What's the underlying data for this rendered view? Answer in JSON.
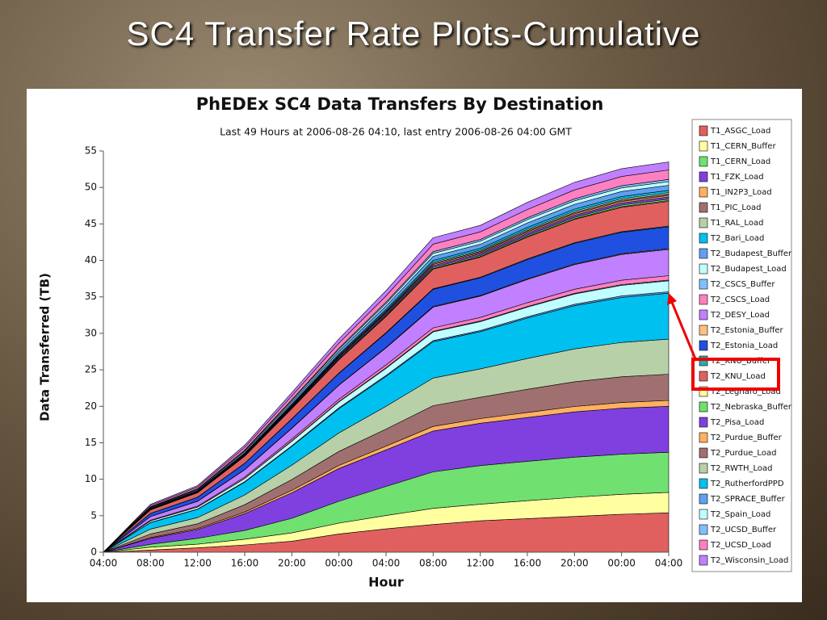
{
  "slide_title": "SC4 Transfer Rate Plots-Cumulative",
  "chart_data": {
    "type": "stacked_area",
    "title": "PhEDEx SC4 Data Transfers By Destination",
    "subtitle": "Last 49 Hours at 2006-08-26 04:10, last entry 2006-08-26 04:00 GMT",
    "x_label": "Hour",
    "y_label": "Data Transferred (TB)",
    "categories": [
      "04:00",
      "08:00",
      "12:00",
      "16:00",
      "20:00",
      "00:00",
      "04:00",
      "08:00",
      "12:00",
      "16:00",
      "20:00",
      "00:00",
      "04:00"
    ],
    "ylim": [
      0,
      55
    ],
    "yticks": [
      0,
      5,
      10,
      15,
      20,
      25,
      30,
      35,
      40,
      45,
      50,
      55
    ],
    "series": [
      {
        "name": "T1_ASGC_Load",
        "color": "#e06060",
        "values": [
          0,
          0.3,
          0.6,
          1.0,
          1.5,
          2.5,
          3.2,
          3.8,
          4.3,
          4.6,
          4.9,
          5.2,
          5.4
        ]
      },
      {
        "name": "T1_CERN_Buffer",
        "color": "#ffffa0",
        "values": [
          0,
          0.39,
          0.5,
          0.78,
          1.15,
          1.48,
          1.82,
          2.21,
          2.27,
          2.46,
          2.63,
          2.74,
          2.8
        ]
      },
      {
        "name": "T1_CERN_Load",
        "color": "#70e070",
        "values": [
          0,
          0.4,
          0.8,
          1.2,
          2.0,
          3.0,
          4.0,
          5.0,
          5.3,
          5.4,
          5.5,
          5.5,
          5.5
        ]
      },
      {
        "name": "T1_FZK_Load",
        "color": "#8040e0",
        "values": [
          0,
          0.8,
          1.2,
          2.3,
          3.5,
          4.5,
          5.0,
          5.6,
          5.8,
          6.0,
          6.2,
          6.3,
          6.3
        ]
      },
      {
        "name": "T1_IN2P3_Load",
        "color": "#ffb060",
        "values": [
          0,
          0.11,
          0.14,
          0.22,
          0.33,
          0.42,
          0.52,
          0.63,
          0.65,
          0.7,
          0.75,
          0.78,
          0.8
        ]
      },
      {
        "name": "T1_PIC_Load",
        "color": "#a07070",
        "values": [
          0,
          0.5,
          0.65,
          1.01,
          1.48,
          1.91,
          2.34,
          2.84,
          2.92,
          3.17,
          3.38,
          3.53,
          3.6
        ]
      },
      {
        "name": "T1_RAL_Load",
        "color": "#b8d0a8",
        "values": [
          0,
          0.67,
          0.86,
          1.34,
          1.97,
          2.54,
          3.12,
          3.79,
          3.89,
          4.22,
          4.51,
          4.7,
          4.8
        ]
      },
      {
        "name": "T2_Bari_Load",
        "color": "#00c0f0",
        "values": [
          0,
          0.88,
          1.13,
          1.76,
          2.58,
          3.34,
          4.1,
          4.98,
          5.1,
          5.54,
          5.92,
          6.17,
          6.3
        ]
      },
      {
        "name": "T2_Budapest_Buffer",
        "color": "#60a0f0",
        "values": [
          0,
          0.03,
          0.04,
          0.06,
          0.08,
          0.11,
          0.13,
          0.16,
          0.16,
          0.18,
          0.19,
          0.2,
          0.2
        ]
      },
      {
        "name": "T2_Budapest_Load",
        "color": "#c0ffff",
        "values": [
          0,
          0.21,
          0.27,
          0.42,
          0.62,
          0.8,
          0.98,
          1.19,
          1.22,
          1.32,
          1.41,
          1.47,
          1.5
        ]
      },
      {
        "name": "T2_CSCS_Buffer",
        "color": "#80c0ff",
        "values": [
          0,
          0.01,
          0.02,
          0.03,
          0.04,
          0.05,
          0.07,
          0.08,
          0.08,
          0.09,
          0.09,
          0.1,
          0.1
        ]
      },
      {
        "name": "T2_CSCS_Load",
        "color": "#ff80c0",
        "values": [
          0,
          0.08,
          0.11,
          0.17,
          0.25,
          0.32,
          0.39,
          0.47,
          0.49,
          0.53,
          0.56,
          0.59,
          0.6
        ]
      },
      {
        "name": "T2_DESY_Load",
        "color": "#c080ff",
        "values": [
          0,
          0.5,
          0.65,
          1.01,
          1.48,
          1.91,
          2.34,
          2.84,
          2.92,
          3.17,
          3.38,
          3.53,
          3.6
        ]
      },
      {
        "name": "T2_Estonia_Buffer",
        "color": "#ffc080",
        "values": [
          0,
          0.01,
          0.02,
          0.03,
          0.04,
          0.05,
          0.07,
          0.08,
          0.08,
          0.09,
          0.09,
          0.1,
          0.1
        ]
      },
      {
        "name": "T2_Estonia_Load",
        "color": "#2050e0",
        "values": [
          0,
          0.42,
          0.54,
          0.84,
          1.23,
          1.59,
          1.95,
          2.37,
          2.43,
          2.64,
          2.82,
          2.94,
          3.0
        ]
      },
      {
        "name": "T2_KNU_Buffer",
        "color": "#20b0b0",
        "values": [
          0,
          0.01,
          0.02,
          0.03,
          0.04,
          0.05,
          0.07,
          0.08,
          0.08,
          0.09,
          0.09,
          0.1,
          0.1
        ]
      },
      {
        "name": "T2_KNU_Load",
        "color": "#e06060",
        "values": [
          0,
          0.48,
          0.61,
          0.95,
          1.39,
          1.8,
          2.21,
          2.69,
          2.75,
          2.99,
          3.2,
          3.33,
          3.4
        ]
      },
      {
        "name": "T2_Legnaro_Load",
        "color": "#ffffa0",
        "values": [
          0,
          0.01,
          0.02,
          0.03,
          0.04,
          0.05,
          0.07,
          0.08,
          0.08,
          0.09,
          0.09,
          0.1,
          0.1
        ]
      },
      {
        "name": "T2_Nebraska_Buffer",
        "color": "#70e070",
        "values": [
          0,
          0.03,
          0.04,
          0.06,
          0.08,
          0.11,
          0.13,
          0.16,
          0.16,
          0.18,
          0.19,
          0.2,
          0.2
        ]
      },
      {
        "name": "T2_Pisa_Load",
        "color": "#8040e0",
        "values": [
          0,
          0.04,
          0.05,
          0.08,
          0.12,
          0.16,
          0.2,
          0.24,
          0.24,
          0.26,
          0.28,
          0.29,
          0.3
        ]
      },
      {
        "name": "T2_Purdue_Buffer",
        "color": "#ffb060",
        "values": [
          0,
          0.03,
          0.04,
          0.06,
          0.08,
          0.11,
          0.13,
          0.16,
          0.16,
          0.18,
          0.19,
          0.2,
          0.2
        ]
      },
      {
        "name": "T2_Purdue_Load",
        "color": "#a07070",
        "values": [
          0,
          0.03,
          0.04,
          0.06,
          0.08,
          0.11,
          0.13,
          0.16,
          0.16,
          0.18,
          0.19,
          0.2,
          0.2
        ]
      },
      {
        "name": "T2_RWTH_Load",
        "color": "#b8d0a8",
        "values": [
          0,
          0.03,
          0.04,
          0.06,
          0.08,
          0.11,
          0.13,
          0.16,
          0.16,
          0.18,
          0.19,
          0.2,
          0.2
        ]
      },
      {
        "name": "T2_RutherfordPPD",
        "color": "#00c0f0",
        "values": [
          0,
          0.04,
          0.05,
          0.08,
          0.12,
          0.16,
          0.2,
          0.24,
          0.24,
          0.26,
          0.28,
          0.29,
          0.3
        ]
      },
      {
        "name": "T2_SPRACE_Buffer",
        "color": "#60a0f0",
        "values": [
          0,
          0.1,
          0.13,
          0.2,
          0.29,
          0.37,
          0.46,
          0.55,
          0.57,
          0.62,
          0.66,
          0.69,
          0.7
        ]
      },
      {
        "name": "T2_Spain_Load",
        "color": "#c0ffff",
        "values": [
          0,
          0.07,
          0.09,
          0.14,
          0.21,
          0.27,
          0.33,
          0.4,
          0.41,
          0.44,
          0.47,
          0.49,
          0.5
        ]
      },
      {
        "name": "T2_UCSD_Buffer",
        "color": "#80c0ff",
        "values": [
          0,
          0.04,
          0.05,
          0.08,
          0.12,
          0.16,
          0.2,
          0.24,
          0.24,
          0.26,
          0.28,
          0.29,
          0.3
        ]
      },
      {
        "name": "T2_UCSD_Load",
        "color": "#ff80c0",
        "values": [
          0,
          0.18,
          0.23,
          0.36,
          0.53,
          0.69,
          0.85,
          1.03,
          1.05,
          1.14,
          1.22,
          1.27,
          1.3
        ]
      },
      {
        "name": "T2_Wisconsin_Load",
        "color": "#c080ff",
        "values": [
          0,
          0.15,
          0.2,
          0.31,
          0.45,
          0.58,
          0.72,
          0.87,
          0.89,
          0.97,
          1.03,
          1.08,
          1.1
        ]
      }
    ]
  }
}
